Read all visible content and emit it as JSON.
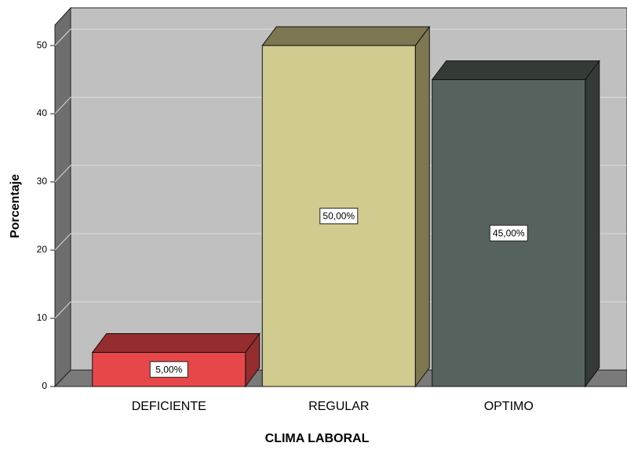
{
  "chart_data": {
    "type": "bar3d",
    "x_label": "CLIMA LABORAL",
    "y_label": "Porcentaje",
    "categories": [
      "DEFICIENTE",
      "REGULAR",
      "OPTIMO"
    ],
    "values": [
      5,
      50,
      45
    ],
    "value_labels": [
      "5,00%",
      "50,00%",
      "45,00%"
    ],
    "colors": [
      "#e8474a",
      "#d2cb90",
      "#56625d"
    ],
    "side_colors": [
      "#952c2e",
      "#7d7752",
      "#343b37"
    ],
    "ylim": [
      0,
      53
    ],
    "yticks": [
      0,
      10,
      20,
      30,
      40,
      50
    ],
    "grid": true
  }
}
